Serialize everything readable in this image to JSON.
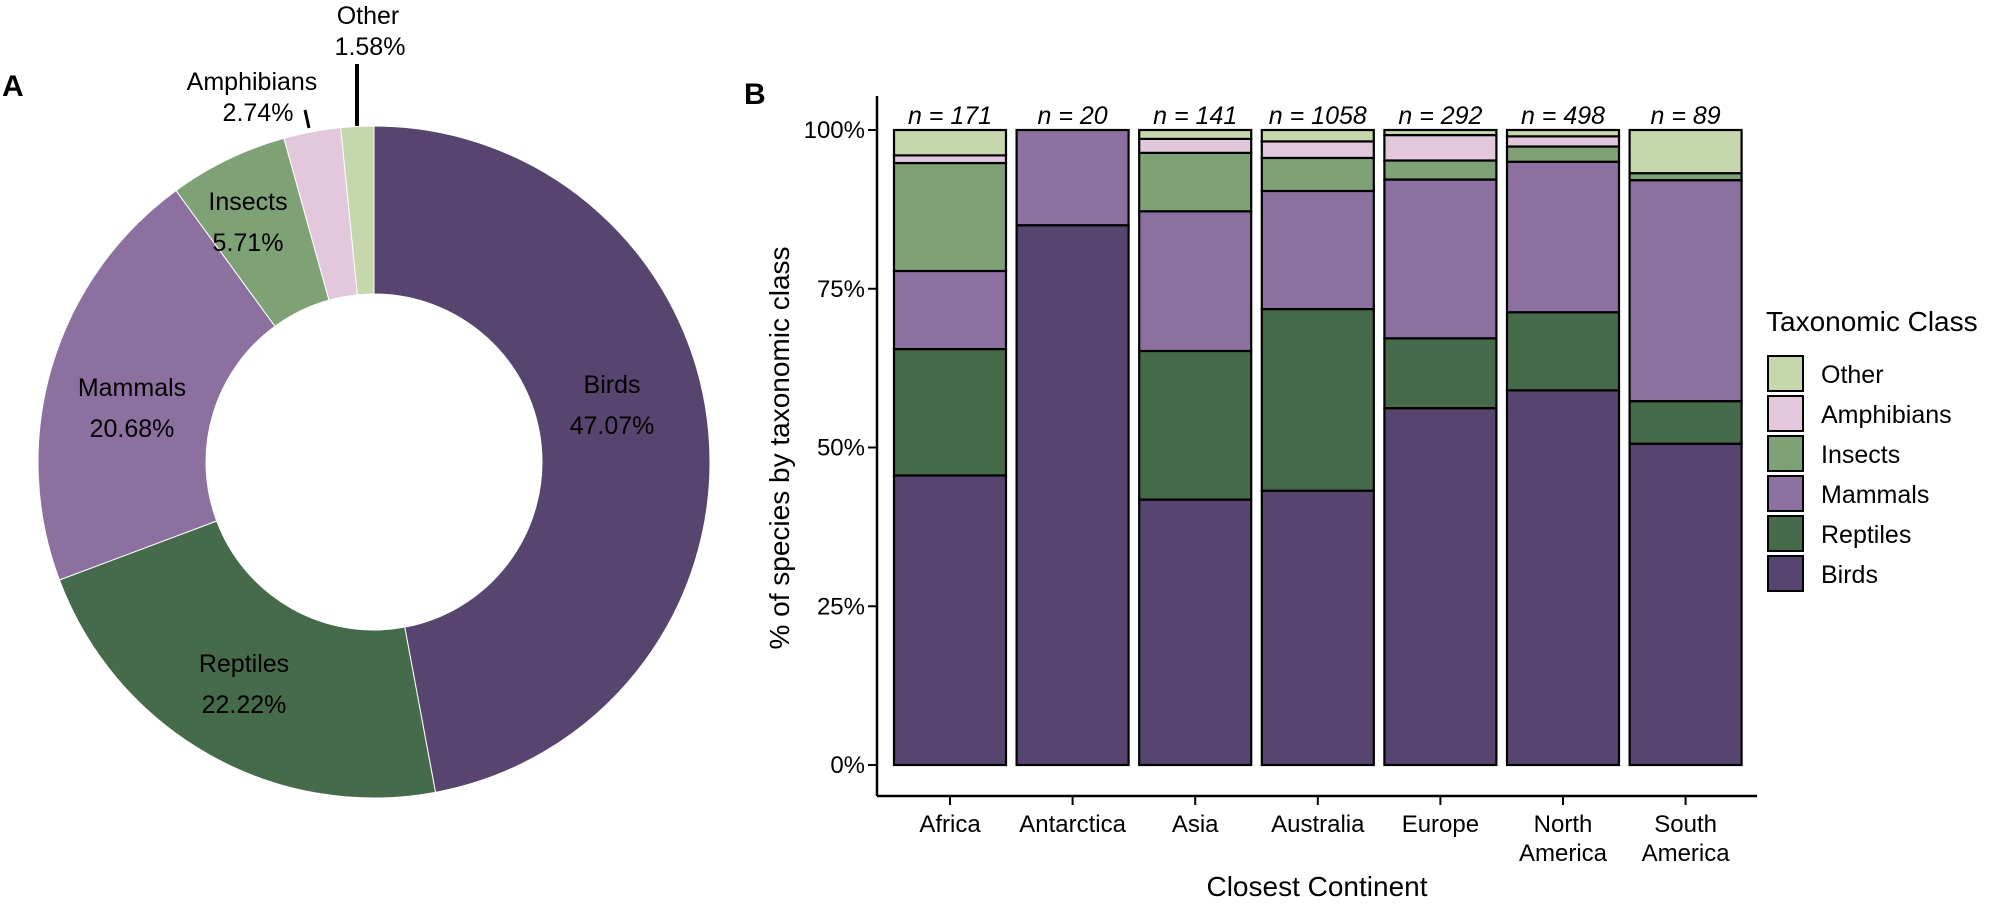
{
  "panels": {
    "a_label": "A",
    "b_label": "B"
  },
  "colors": {
    "Birds": "#574570",
    "Reptiles": "#466b4b",
    "Mammals": "#8c71a0",
    "Insects": "#7fa176",
    "Amphibians": "#e2c7dd",
    "Other": "#c6d7ae"
  },
  "chart_data": [
    {
      "type": "pie",
      "subtype": "donut",
      "panel": "A",
      "categories": [
        "Birds",
        "Reptiles",
        "Mammals",
        "Insects",
        "Amphibians",
        "Other"
      ],
      "values": [
        47.07,
        22.22,
        20.68,
        5.71,
        2.74,
        1.58
      ],
      "value_labels": [
        "47.07%",
        "22.22%",
        "20.68%",
        "5.71%",
        "2.74%",
        "1.58%"
      ]
    },
    {
      "type": "bar",
      "subtype": "stacked-100",
      "panel": "B",
      "xlabel": "Closest Continent",
      "ylabel": "% of species by taxonomic class",
      "ylim": [
        0,
        100
      ],
      "y_ticks": [
        "0%",
        "25%",
        "50%",
        "75%",
        "100%"
      ],
      "grid": false,
      "legend_title": "Taxonomic Class",
      "legend_position": "right",
      "legend_items": [
        "Other",
        "Amphibians",
        "Insects",
        "Mammals",
        "Reptiles",
        "Birds"
      ],
      "categories": [
        [
          "Africa"
        ],
        [
          "Antarctica"
        ],
        [
          "Asia"
        ],
        [
          "Australia"
        ],
        [
          "Europe"
        ],
        [
          "North",
          "America"
        ],
        [
          "South",
          "America"
        ]
      ],
      "n_labels": [
        "n = 171",
        "n = 20",
        "n = 141",
        "n = 1058",
        "n = 292",
        "n = 498",
        "n = 89"
      ],
      "series": [
        {
          "name": "Birds",
          "values": [
            45.6,
            85.0,
            41.8,
            43.2,
            56.2,
            59.0,
            50.6
          ]
        },
        {
          "name": "Reptiles",
          "values": [
            19.9,
            0.0,
            23.4,
            28.6,
            11.0,
            12.3,
            6.7
          ]
        },
        {
          "name": "Mammals",
          "values": [
            12.3,
            15.0,
            22.0,
            18.6,
            25.0,
            23.7,
            34.8
          ]
        },
        {
          "name": "Insects",
          "values": [
            17.0,
            0.0,
            9.2,
            5.2,
            3.0,
            2.4,
            1.1
          ]
        },
        {
          "name": "Amphibians",
          "values": [
            1.2,
            0.0,
            2.2,
            2.6,
            4.0,
            1.6,
            0.0
          ]
        },
        {
          "name": "Other",
          "values": [
            4.0,
            0.0,
            1.4,
            1.8,
            0.8,
            1.0,
            6.8
          ]
        }
      ]
    }
  ]
}
